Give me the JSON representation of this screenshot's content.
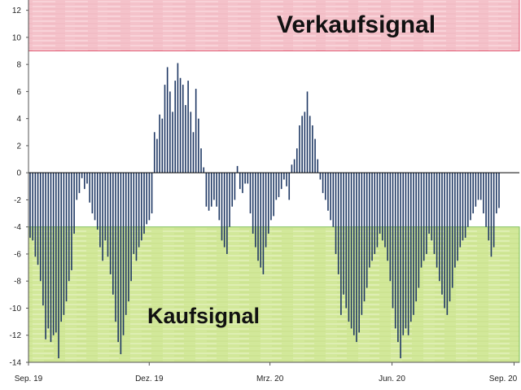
{
  "chart_data": {
    "type": "bar",
    "title": "",
    "xlabel": "",
    "ylabel": "",
    "ylim": [
      -14,
      13
    ],
    "y_ticks": [
      12,
      10,
      8,
      6,
      4,
      2,
      0,
      -2,
      -4,
      -6,
      -8,
      -10,
      -12,
      -14
    ],
    "x_range": [
      "2019-09-01",
      "2020-09-05"
    ],
    "x_ticks": [
      {
        "date": "2019-09-01",
        "label": "Sep. 19"
      },
      {
        "date": "2019-12-01",
        "label": "Dez. 19"
      },
      {
        "date": "2020-03-01",
        "label": "Mrz. 20"
      },
      {
        "date": "2020-06-01",
        "label": "Jun. 20"
      },
      {
        "date": "2020-09-01",
        "label": "Sep. 20"
      }
    ],
    "bar_color": "#1f3864",
    "zones": [
      {
        "name": "sell",
        "label": "Verkaufsignal",
        "from": 9,
        "to": 13,
        "color": "#f4c2ca",
        "border": "#e05a73"
      },
      {
        "name": "buy",
        "label": "Kaufsignal",
        "from": -14,
        "to": -4,
        "color": "#d2e89a",
        "border": "#7fbf5a"
      }
    ],
    "series": [
      {
        "values": [
          -4.8,
          -5.0,
          -6.2,
          -6.8,
          -8.0,
          -9.8,
          -12.3,
          -11.5,
          -12.5,
          -12.0,
          -11.8,
          -13.7,
          -11.0,
          -10.5,
          -9.5,
          -8.0,
          -7.2,
          -4.5,
          -2.0,
          -1.5,
          -0.4,
          -1.2,
          -0.8,
          -2.2,
          -3.0,
          -3.5,
          -4.2,
          -5.5,
          -6.5,
          -5.0,
          -6.2,
          -7.5,
          -9.0,
          -11.0,
          -12.5,
          -13.4,
          -12.0,
          -10.5,
          -9.5,
          -8.0,
          -6.0,
          -6.5,
          -5.5,
          -5.0,
          -4.5,
          -3.8,
          -3.5,
          -3.0,
          3.0,
          2.5,
          4.3,
          4.0,
          6.5,
          7.8,
          6.0,
          4.5,
          6.8,
          8.1,
          7.0,
          6.5,
          5.0,
          6.8,
          4.5,
          3.0,
          6.2,
          4.0,
          1.8,
          0.4,
          -2.5,
          -2.8,
          -2.5,
          -2.0,
          -2.5,
          -3.5,
          -5.0,
          -5.5,
          -6.0,
          -4.0,
          -2.5,
          -2.0,
          0.5,
          -1.2,
          -1.5,
          -0.8,
          -0.8,
          -3.0,
          -4.5,
          -5.5,
          -6.5,
          -7.0,
          -7.5,
          -5.5,
          -4.5,
          -3.5,
          -3.2,
          -2.0,
          -1.8,
          -1.2,
          -0.5,
          -1.0,
          -2.0,
          0.6,
          1.0,
          1.8,
          3.5,
          4.2,
          4.5,
          6.0,
          4.2,
          3.5,
          2.5,
          1.0,
          -0.5,
          -1.5,
          -2.0,
          -2.8,
          -3.5,
          -4.0,
          -6.0,
          -7.5,
          -10.5,
          -9.0,
          -10.0,
          -11.0,
          -11.5,
          -12.0,
          -12.5,
          -11.8,
          -10.5,
          -9.5,
          -8.5,
          -7.0,
          -6.5,
          -6.0,
          -5.5,
          -4.5,
          -5.0,
          -5.5,
          -6.5,
          -8.0,
          -10.0,
          -11.5,
          -12.5,
          -13.7,
          -12.0,
          -11.5,
          -12.0,
          -11.0,
          -10.5,
          -9.5,
          -8.5,
          -7.0,
          -6.5,
          -6.0,
          -4.5,
          -5.0,
          -6.0,
          -7.0,
          -8.0,
          -9.0,
          -10.0,
          -10.5,
          -9.5,
          -8.5,
          -7.0,
          -6.5,
          -5.5,
          -5.0,
          -4.8,
          -4.0,
          -3.5,
          -3.0,
          -2.5,
          -2.0,
          -2.0,
          -3.0,
          -4.0,
          -5.0,
          -6.2,
          -5.5,
          -3.0,
          -2.6
        ]
      }
    ]
  }
}
